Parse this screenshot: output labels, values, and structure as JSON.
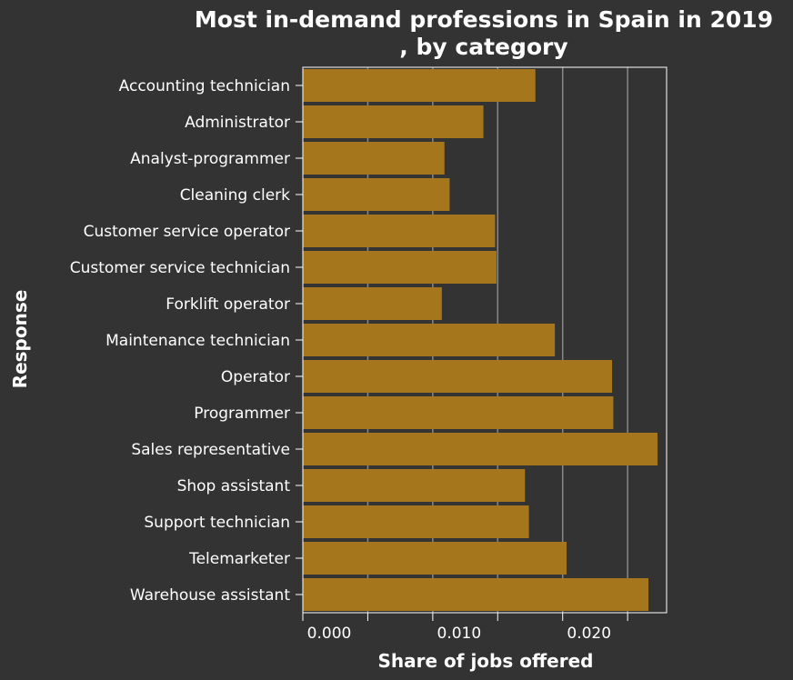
{
  "chart_data": {
    "type": "bar",
    "orientation": "horizontal",
    "title": [
      "Most in-demand professions in Spain in 2019",
      ", by category"
    ],
    "xlabel": "Share of jobs offered",
    "ylabel": "Response",
    "categories": [
      "Accounting technician",
      "Administrator",
      "Analyst-programmer",
      "Cleaning clerk",
      "Customer service operator",
      "Customer service technician",
      "Forklift operator",
      "Maintenance technician",
      "Operator",
      "Programmer",
      "Sales representative",
      "Shop assistant",
      "Support technician",
      "Telemarketer",
      "Warehouse assistant"
    ],
    "values": [
      0.0179,
      0.0139,
      0.0109,
      0.0113,
      0.0148,
      0.0149,
      0.0107,
      0.0194,
      0.0238,
      0.0239,
      0.0273,
      0.0171,
      0.0174,
      0.0203,
      0.0266
    ],
    "xlim": [
      0,
      0.028
    ],
    "xticks": [
      0,
      0.005,
      0.01,
      0.015,
      0.02,
      0.025
    ],
    "xtick_labels": [
      "0.000",
      "",
      "0.010",
      "",
      "0.020",
      ""
    ],
    "grid": "vertical",
    "legend": "none",
    "colors": {
      "background": "#333333",
      "bar": "#a6761d",
      "text": "#ffffff",
      "grid": "#888888",
      "axis": "#ffffff"
    }
  }
}
